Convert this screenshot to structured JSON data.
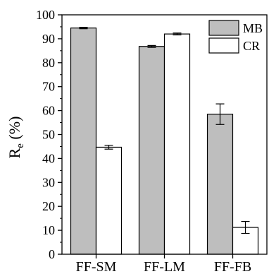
{
  "chart_data": {
    "type": "bar",
    "categories": [
      "FF-SM",
      "FF-LM",
      "FF-FB"
    ],
    "series": [
      {
        "name": "MB",
        "values": [
          94.5,
          86.8,
          58.5
        ],
        "errors": [
          0.3,
          0.4,
          4.3
        ],
        "color": "#bebebe"
      },
      {
        "name": "CR",
        "values": [
          44.7,
          92.0,
          11.2
        ],
        "errors": [
          0.8,
          0.4,
          2.5
        ],
        "color": "#ffffff"
      }
    ],
    "ylabel_main": "R",
    "ylabel_sub": "e",
    "ylabel_unit": " (%)",
    "ylim": [
      0,
      100
    ],
    "yticks": [
      0,
      10,
      20,
      30,
      40,
      50,
      60,
      70,
      80,
      90,
      100
    ],
    "grid": false,
    "legend_position": "top-right"
  }
}
